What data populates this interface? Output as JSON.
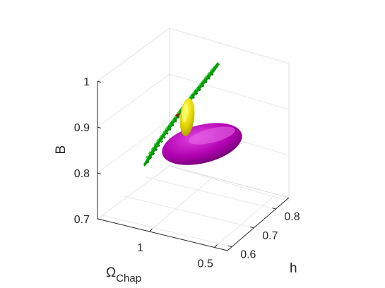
{
  "chart_data": {
    "type": "scatter",
    "title": "",
    "axes": {
      "x": {
        "label": "Ω",
        "label_subscript": "Chap",
        "ticks": [
          1,
          0.5
        ],
        "tick_labels": [
          "1",
          "0.5"
        ],
        "range": [
          0.4,
          1.4
        ],
        "direction": "reversed"
      },
      "y": {
        "label": "h",
        "ticks": [
          0.6,
          0.7,
          0.8
        ],
        "tick_labels": [
          "0.6",
          "0.7",
          "0.8"
        ],
        "range": [
          0.58,
          0.86
        ]
      },
      "z": {
        "label": "B",
        "ticks": [
          0.7,
          0.8,
          0.9,
          1.0
        ],
        "tick_labels": [
          "0.7",
          "0.8",
          "0.9",
          "1"
        ],
        "range": [
          0.7,
          1.0
        ]
      }
    },
    "grid": true,
    "legend": "none",
    "series": [
      {
        "kind": "ribbon",
        "color": "#00a000",
        "highlight": "#33cc33",
        "points": [
          [
            1.15,
            0.56,
            0.905
          ],
          [
            0.95,
            0.75,
            1.125
          ]
        ]
      },
      {
        "kind": "ellipsoid",
        "color": "#e6d600",
        "highlight": "#ffff33",
        "center": [
          1.0,
          0.7,
          0.985
        ]
      },
      {
        "kind": "ellipsoid",
        "color": "#a300a3",
        "highlight": "#e040e0",
        "center": [
          0.7,
          0.7,
          0.85
        ]
      }
    ]
  }
}
